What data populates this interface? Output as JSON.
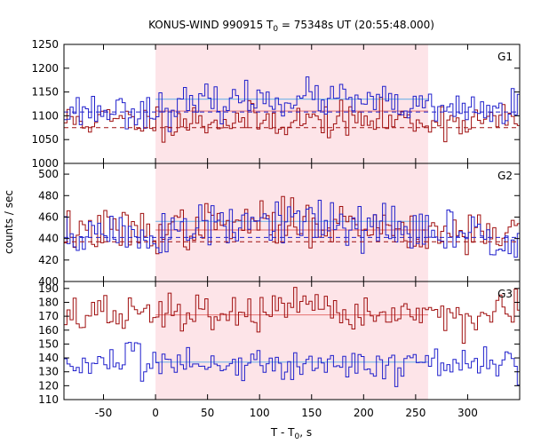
{
  "chart_data": {
    "type": "line",
    "title": "KONUS-WIND 990915 T0 = 75348s UT (20:55:48.000)",
    "title_parts": {
      "prefix": "KONUS-WIND 990915 T",
      "sub": "0",
      "suffix": " = 75348s UT (20:55:48.000)"
    },
    "xlabel": "T - T0, s",
    "xlabel_parts": {
      "prefix": "T - T",
      "sub": "0",
      "suffix": ", s"
    },
    "ylabel": "counts / sec",
    "xlim": [
      -88,
      350
    ],
    "x_ticks": [
      -50,
      0,
      50,
      100,
      150,
      200,
      250,
      300
    ],
    "highlight_interval": [
      0,
      262
    ],
    "colors": {
      "red": "#a01010",
      "blue": "#2020cc",
      "red_fit": "#e87f7f",
      "blue_fit": "#7fb8e8",
      "shade": "#fde4e8"
    },
    "panels": [
      {
        "label": "G1",
        "ylim": [
          1000,
          1250
        ],
        "y_ticks": [
          1000,
          1050,
          1100,
          1150,
          1200,
          1250
        ],
        "series": [
          {
            "color": "red",
            "mean": 1090,
            "noise": 18,
            "step": 2.944,
            "start": -88,
            "seed": 11,
            "bump": 0
          },
          {
            "color": "blue",
            "mean": 1112,
            "noise": 18,
            "step": 2.944,
            "start": -88,
            "seed": 23,
            "bump": 25
          }
        ],
        "dashed_levels": [
          {
            "color": "red",
            "y0": 1075,
            "y1": 1075
          },
          {
            "color": "blue",
            "y0": 1108,
            "y1": 1108
          }
        ],
        "fit_lines": [
          {
            "color": "red_fit",
            "y": 1110
          },
          {
            "color": "blue_fit",
            "y": 1135
          }
        ]
      },
      {
        "label": "G2",
        "ylim": [
          400,
          510
        ],
        "y_ticks": [
          400,
          420,
          440,
          460,
          480,
          500
        ],
        "series": [
          {
            "color": "red",
            "mean": 447,
            "noise": 10,
            "step": 2.944,
            "start": -88,
            "seed": 37,
            "bump": 8
          },
          {
            "color": "blue",
            "mean": 444,
            "noise": 12,
            "step": 2.944,
            "start": -88,
            "seed": 51,
            "bump": 10
          }
        ],
        "dashed_levels": [
          {
            "color": "red",
            "y0": 437,
            "y1": 437
          },
          {
            "color": "blue",
            "y0": 441,
            "y1": 441
          }
        ],
        "fit_lines": [
          {
            "color": "red_fit",
            "y": 448
          },
          {
            "color": "blue_fit",
            "y": 456
          }
        ]
      },
      {
        "label": "G3",
        "ylim": [
          110,
          195
        ],
        "y_ticks": [
          110,
          120,
          130,
          140,
          150,
          160,
          170,
          180,
          190
        ],
        "series": [
          {
            "color": "red",
            "mean": 171,
            "noise": 7,
            "step": 2.944,
            "start": -88,
            "seed": 67,
            "bump": 2
          },
          {
            "color": "blue",
            "mean": 136,
            "noise": 6,
            "step": 2.944,
            "start": -88,
            "seed": 83,
            "bump": 0
          }
        ],
        "dashed_levels": [],
        "fit_lines": [
          {
            "color": "red_fit",
            "y": 171
          },
          {
            "color": "blue_fit",
            "y": 137
          }
        ]
      }
    ]
  }
}
